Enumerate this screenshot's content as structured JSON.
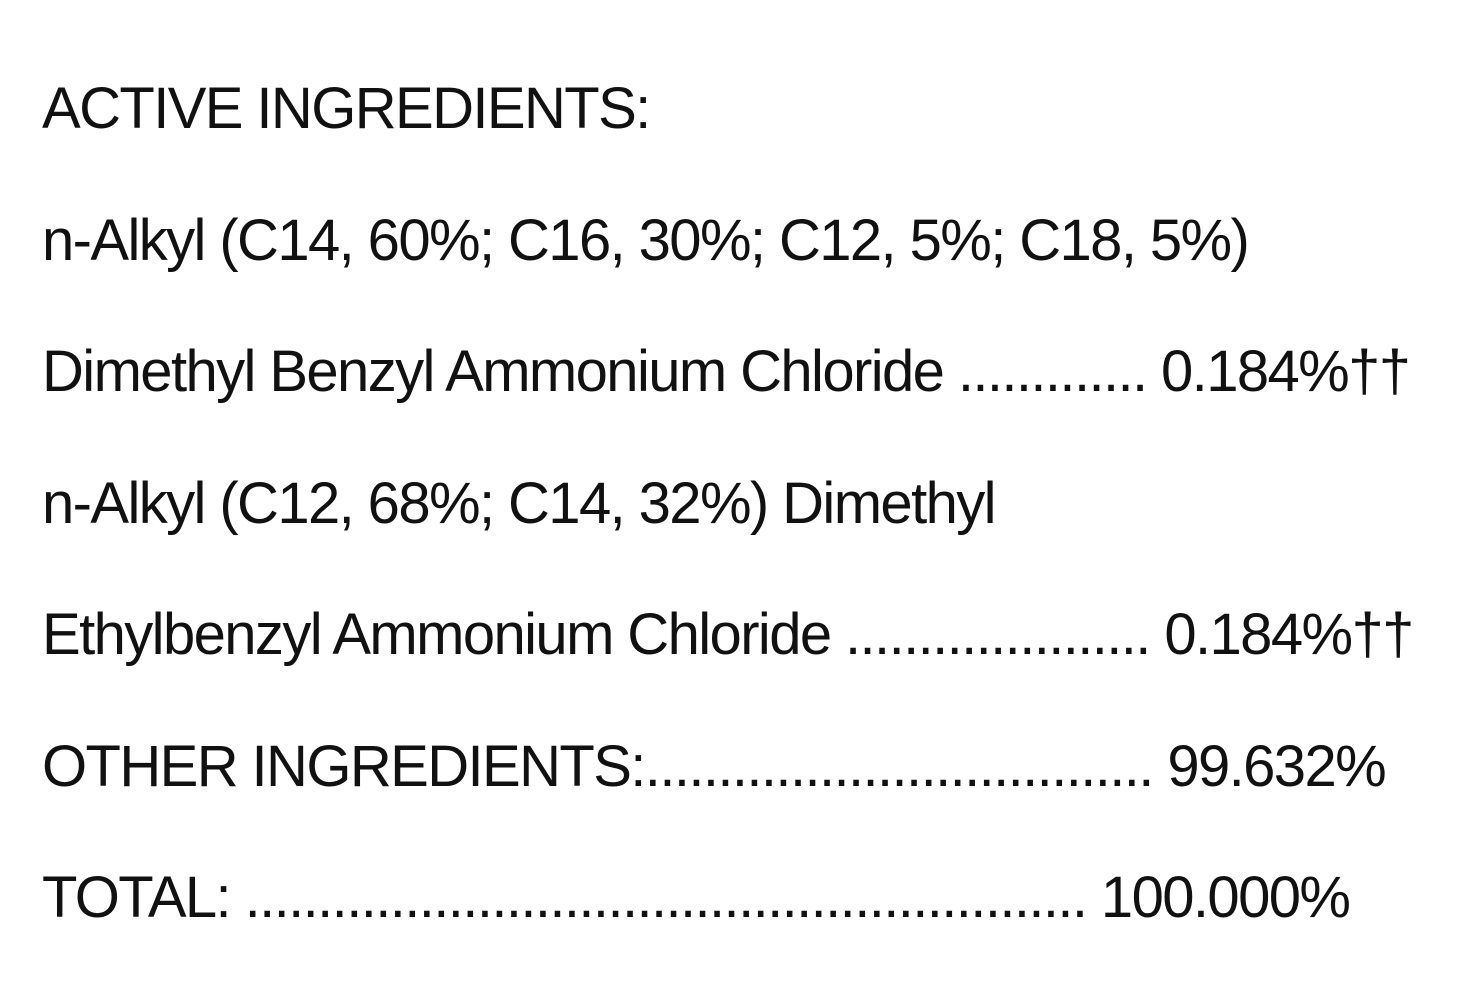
{
  "lines": [
    "ACTIVE INGREDIENTS:",
    "n-Alkyl (C14, 60%; C16, 30%; C12, 5%; C18, 5%)",
    "Dimethyl Benzyl Ammonium Chloride ............. 0.184%††",
    "n-Alkyl (C12, 68%; C14, 32%) Dimethyl",
    "Ethylbenzyl Ammonium Chloride ..................... 0.184%††",
    "OTHER INGREDIENTS:................................... 99.632%",
    "TOTAL: .......................................................... 100.000%"
  ]
}
